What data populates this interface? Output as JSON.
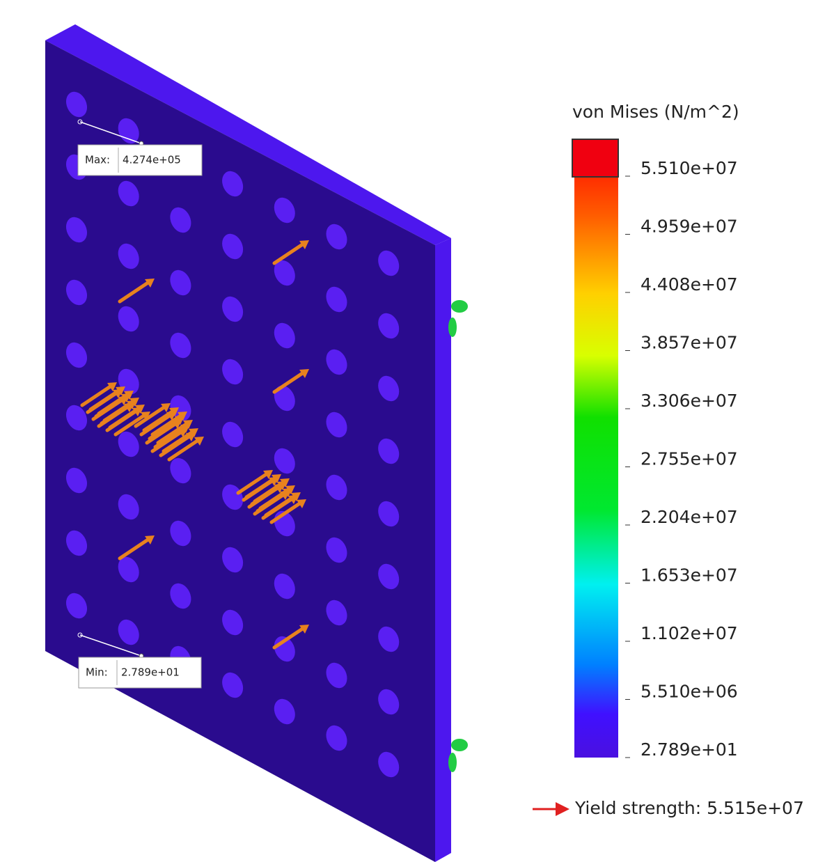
{
  "legend": {
    "title": "von Mises (N/m^2)",
    "labels": [
      "5.510e+07",
      "4.959e+07",
      "4.408e+07",
      "3.857e+07",
      "3.306e+07",
      "2.755e+07",
      "2.204e+07",
      "1.653e+07",
      "1.102e+07",
      "5.510e+06",
      "2.789e+01"
    ]
  },
  "max_probe": {
    "label": "Max:",
    "value": "4.274e+05"
  },
  "min_probe": {
    "label": "Min:",
    "value": "2.789e+01"
  },
  "yield_strength": "Yield strength: 5.515e+07"
}
